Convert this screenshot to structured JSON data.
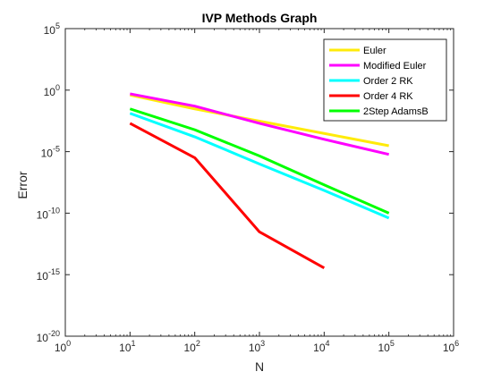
{
  "chart_data": {
    "type": "line",
    "title": "IVP Methods Graph",
    "xlabel": "N",
    "ylabel": "Error",
    "xscale": "log",
    "yscale": "log",
    "xlim": [
      1,
      1000000
    ],
    "ylim": [
      1e-20,
      100000
    ],
    "grid": false,
    "legend_position": "top-right",
    "x_ticks": [
      {
        "base": "10",
        "exp": "0"
      },
      {
        "base": "10",
        "exp": "1"
      },
      {
        "base": "10",
        "exp": "2"
      },
      {
        "base": "10",
        "exp": "3"
      },
      {
        "base": "10",
        "exp": "4"
      },
      {
        "base": "10",
        "exp": "5"
      },
      {
        "base": "10",
        "exp": "6"
      }
    ],
    "y_ticks": [
      {
        "base": "10",
        "exp": "-20"
      },
      {
        "base": "10",
        "exp": "-15"
      },
      {
        "base": "10",
        "exp": "-10"
      },
      {
        "base": "10",
        "exp": "-5"
      },
      {
        "base": "10",
        "exp": "0"
      },
      {
        "base": "10",
        "exp": "5"
      }
    ],
    "series": [
      {
        "name": "Euler",
        "color": "#ffeb0a",
        "x": [
          10,
          100,
          1000,
          10000,
          100000
        ],
        "y": [
          0.4,
          0.03,
          0.003,
          0.0003,
          3e-05
        ]
      },
      {
        "name": "Modified Euler",
        "color": "#ff00ff",
        "x": [
          10,
          100,
          1000,
          10000,
          100000
        ],
        "y": [
          0.5,
          0.05,
          0.002,
          0.0001,
          6e-06
        ]
      },
      {
        "name": "Order 2 RK",
        "color": "#00ffff",
        "x": [
          10,
          100,
          1000,
          10000,
          100000
        ],
        "y": [
          0.013,
          0.00016,
          1e-06,
          7e-09,
          4e-11
        ]
      },
      {
        "name": "Order 4 RK",
        "color": "#ff0000",
        "x": [
          10,
          100,
          1000,
          10000
        ],
        "y": [
          0.002,
          3.2e-06,
          3e-12,
          3.5e-15
        ]
      },
      {
        "name": "2Step AdamsB",
        "color": "#00ff00",
        "x": [
          10,
          100,
          1000,
          10000,
          100000
        ],
        "y": [
          0.03,
          0.0006,
          4.5e-06,
          2e-08,
          1e-10
        ]
      }
    ]
  }
}
